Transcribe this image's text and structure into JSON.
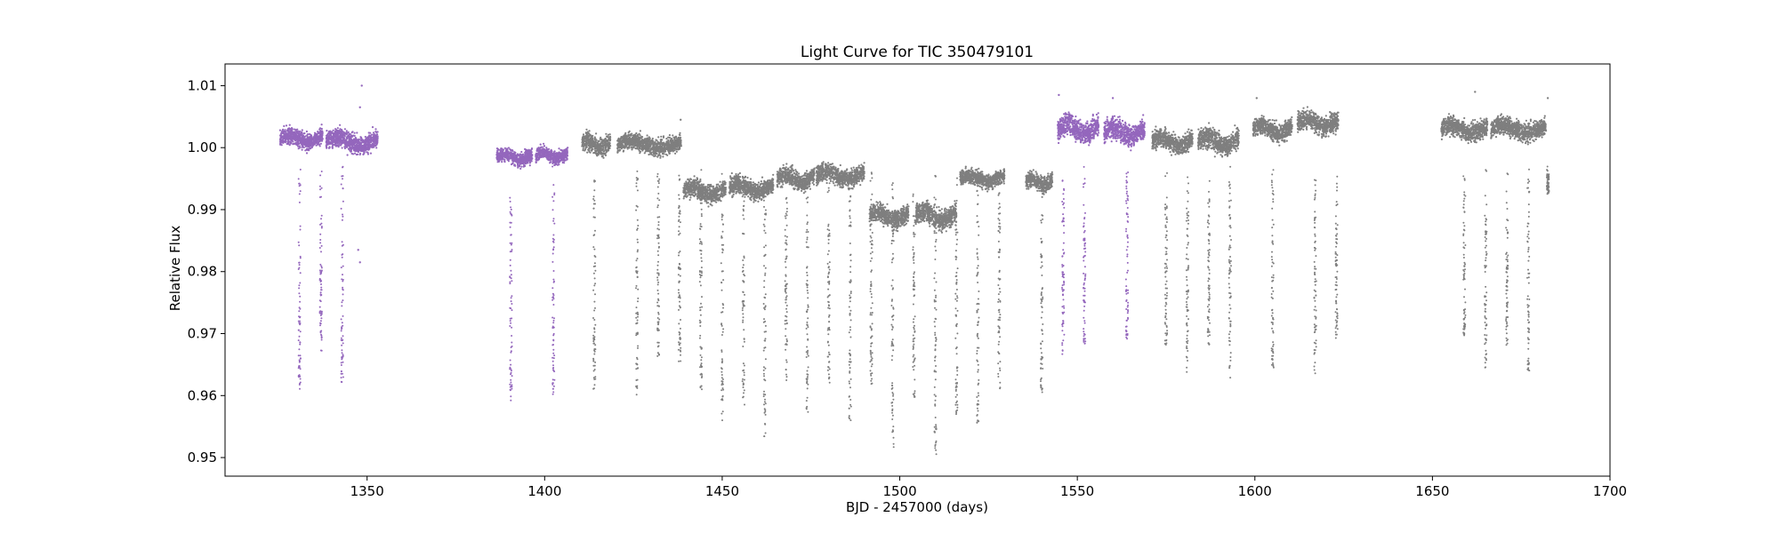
{
  "chart_data": {
    "type": "scatter",
    "title": "Light Curve for TIC 350479101",
    "xlabel": "BJD - 2457000 (days)",
    "ylabel": "Relative Flux",
    "xlim": [
      1310,
      1700
    ],
    "ylim": [
      0.947,
      1.0135
    ],
    "xticks": [
      1350,
      1400,
      1450,
      1500,
      1550,
      1600,
      1650,
      1700
    ],
    "yticks": [
      0.95,
      0.96,
      0.97,
      0.98,
      0.99,
      1.0,
      1.01
    ],
    "ytick_labels": [
      "0.95",
      "0.96",
      "0.97",
      "0.98",
      "0.99",
      "1.00",
      "1.01"
    ],
    "grid": false,
    "legend": "none",
    "colors": {
      "highlight": "#9467bd",
      "base": "#7f7f7f"
    },
    "segments": [
      {
        "x0": 1325.5,
        "x1": 1337.5,
        "level": 1.0015,
        "spread": 0.0022,
        "color": "highlight"
      },
      {
        "x0": 1338.5,
        "x1": 1353.0,
        "level": 1.001,
        "spread": 0.0025,
        "color": "highlight"
      },
      {
        "x0": 1386.5,
        "x1": 1396.5,
        "level": 0.9985,
        "spread": 0.0018,
        "color": "highlight"
      },
      {
        "x0": 1397.5,
        "x1": 1406.5,
        "level": 0.9988,
        "spread": 0.0018,
        "color": "highlight"
      },
      {
        "x0": 1410.5,
        "x1": 1418.5,
        "level": 1.0005,
        "spread": 0.0025,
        "color": "base"
      },
      {
        "x0": 1420.5,
        "x1": 1438.5,
        "level": 1.0005,
        "spread": 0.0022,
        "color": "base"
      },
      {
        "x0": 1439.0,
        "x1": 1451.0,
        "level": 0.993,
        "spread": 0.0025,
        "color": "base"
      },
      {
        "x0": 1452.0,
        "x1": 1464.5,
        "level": 0.9935,
        "spread": 0.0025,
        "color": "base"
      },
      {
        "x0": 1465.5,
        "x1": 1476.0,
        "level": 0.995,
        "spread": 0.0025,
        "color": "base"
      },
      {
        "x0": 1476.5,
        "x1": 1490.0,
        "level": 0.9955,
        "spread": 0.0025,
        "color": "base"
      },
      {
        "x0": 1491.5,
        "x1": 1502.5,
        "level": 0.989,
        "spread": 0.0025,
        "color": "base"
      },
      {
        "x0": 1504.5,
        "x1": 1516.0,
        "level": 0.989,
        "spread": 0.003,
        "color": "base"
      },
      {
        "x0": 1517.0,
        "x1": 1529.5,
        "level": 0.995,
        "spread": 0.002,
        "color": "base"
      },
      {
        "x0": 1535.5,
        "x1": 1543.0,
        "level": 0.9945,
        "spread": 0.0022,
        "color": "base"
      },
      {
        "x0": 1544.5,
        "x1": 1556.0,
        "level": 1.003,
        "spread": 0.003,
        "color": "highlight"
      },
      {
        "x0": 1557.5,
        "x1": 1569.0,
        "level": 1.0025,
        "spread": 0.0028,
        "color": "highlight"
      },
      {
        "x0": 1571.0,
        "x1": 1582.5,
        "level": 1.001,
        "spread": 0.0025,
        "color": "base"
      },
      {
        "x0": 1584.0,
        "x1": 1595.5,
        "level": 1.001,
        "spread": 0.0028,
        "color": "base"
      },
      {
        "x0": 1599.5,
        "x1": 1610.5,
        "level": 1.003,
        "spread": 0.0025,
        "color": "base"
      },
      {
        "x0": 1612.0,
        "x1": 1623.5,
        "level": 1.004,
        "spread": 0.0025,
        "color": "base"
      },
      {
        "x0": 1652.5,
        "x1": 1665.5,
        "level": 1.003,
        "spread": 0.0025,
        "color": "base"
      },
      {
        "x0": 1666.5,
        "x1": 1682.0,
        "level": 1.003,
        "spread": 0.0025,
        "color": "base"
      }
    ],
    "transits": [
      {
        "x": 1331.0,
        "bottom": 0.961,
        "color": "highlight"
      },
      {
        "x": 1337.0,
        "bottom": 0.967,
        "color": "highlight"
      },
      {
        "x": 1343.0,
        "bottom": 0.962,
        "color": "highlight"
      },
      {
        "x": 1390.5,
        "bottom": 0.959,
        "color": "highlight"
      },
      {
        "x": 1402.5,
        "bottom": 0.96,
        "color": "highlight"
      },
      {
        "x": 1414.0,
        "bottom": 0.961,
        "color": "base"
      },
      {
        "x": 1426.0,
        "bottom": 0.96,
        "color": "base"
      },
      {
        "x": 1432.0,
        "bottom": 0.966,
        "color": "base"
      },
      {
        "x": 1438.0,
        "bottom": 0.9655,
        "color": "base"
      },
      {
        "x": 1444.0,
        "bottom": 0.961,
        "color": "base"
      },
      {
        "x": 1450.0,
        "bottom": 0.956,
        "color": "base"
      },
      {
        "x": 1456.0,
        "bottom": 0.958,
        "color": "base"
      },
      {
        "x": 1462.0,
        "bottom": 0.953,
        "color": "base"
      },
      {
        "x": 1468.0,
        "bottom": 0.962,
        "color": "base"
      },
      {
        "x": 1474.0,
        "bottom": 0.957,
        "color": "base"
      },
      {
        "x": 1480.0,
        "bottom": 0.962,
        "color": "base"
      },
      {
        "x": 1486.0,
        "bottom": 0.956,
        "color": "base"
      },
      {
        "x": 1492.0,
        "bottom": 0.961,
        "color": "base"
      },
      {
        "x": 1498.0,
        "bottom": 0.9515,
        "color": "base"
      },
      {
        "x": 1504.0,
        "bottom": 0.959,
        "color": "base"
      },
      {
        "x": 1510.0,
        "bottom": 0.9505,
        "color": "base"
      },
      {
        "x": 1516.0,
        "bottom": 0.957,
        "color": "base"
      },
      {
        "x": 1522.0,
        "bottom": 0.9555,
        "color": "base"
      },
      {
        "x": 1528.0,
        "bottom": 0.961,
        "color": "base"
      },
      {
        "x": 1540.0,
        "bottom": 0.9605,
        "color": "base"
      },
      {
        "x": 1546.0,
        "bottom": 0.9665,
        "color": "highlight"
      },
      {
        "x": 1552.0,
        "bottom": 0.968,
        "color": "highlight"
      },
      {
        "x": 1564.0,
        "bottom": 0.969,
        "color": "highlight"
      },
      {
        "x": 1575.0,
        "bottom": 0.967,
        "color": "base"
      },
      {
        "x": 1581.0,
        "bottom": 0.9635,
        "color": "base"
      },
      {
        "x": 1587.0,
        "bottom": 0.968,
        "color": "base"
      },
      {
        "x": 1593.0,
        "bottom": 0.9625,
        "color": "base"
      },
      {
        "x": 1605.0,
        "bottom": 0.9635,
        "color": "base"
      },
      {
        "x": 1617.0,
        "bottom": 0.9635,
        "color": "base"
      },
      {
        "x": 1623.0,
        "bottom": 0.969,
        "color": "base"
      },
      {
        "x": 1659.0,
        "bottom": 0.9695,
        "color": "base"
      },
      {
        "x": 1665.0,
        "bottom": 0.964,
        "color": "base"
      },
      {
        "x": 1671.0,
        "bottom": 0.9675,
        "color": "base"
      },
      {
        "x": 1677.0,
        "bottom": 0.964,
        "color": "base"
      },
      {
        "x": 1682.5,
        "bottom": 0.9925,
        "color": "base"
      }
    ],
    "outliers": [
      {
        "x": 1348.5,
        "y": 1.01,
        "color": "highlight"
      },
      {
        "x": 1348.0,
        "y": 1.0065,
        "color": "highlight"
      },
      {
        "x": 1347.5,
        "y": 0.9835,
        "color": "highlight"
      },
      {
        "x": 1348.0,
        "y": 0.9815,
        "color": "highlight"
      },
      {
        "x": 1544.8,
        "y": 1.0085,
        "color": "highlight"
      },
      {
        "x": 1560.0,
        "y": 1.008,
        "color": "highlight"
      },
      {
        "x": 1600.5,
        "y": 1.008,
        "color": "base"
      },
      {
        "x": 1662.0,
        "y": 1.009,
        "color": "base"
      },
      {
        "x": 1682.5,
        "y": 1.008,
        "color": "base"
      },
      {
        "x": 1438.3,
        "y": 1.0045,
        "color": "base"
      }
    ]
  }
}
